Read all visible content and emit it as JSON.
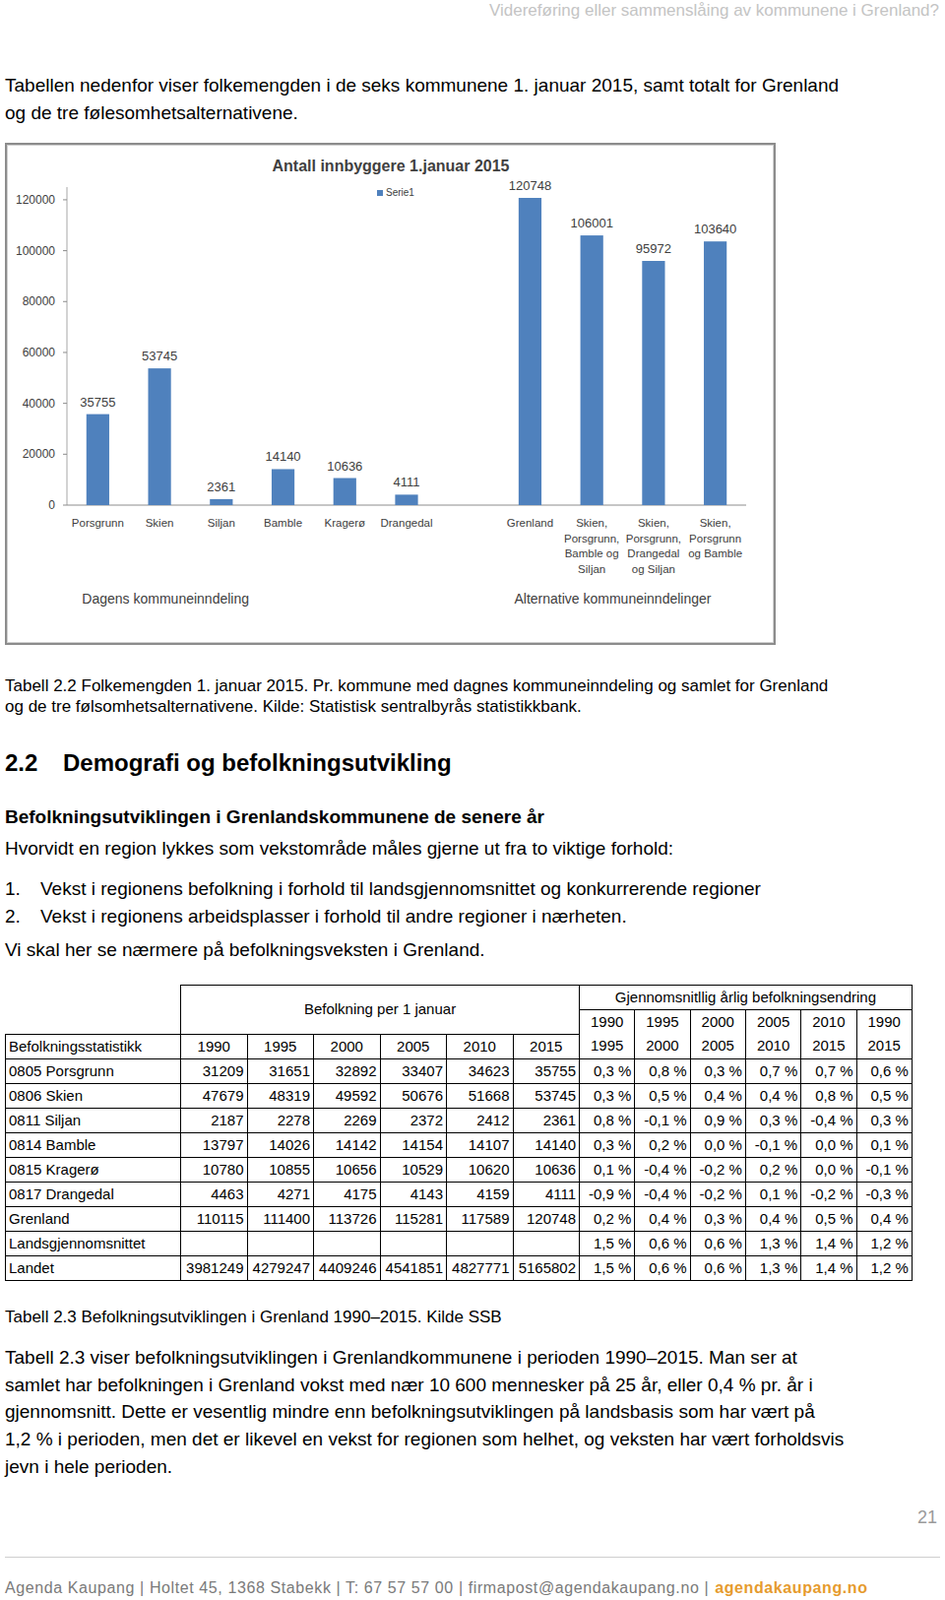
{
  "header": {
    "title": "Videreføring eller sammenslåing av kommunene i Grenland?"
  },
  "intro": [
    "Tabellen nedenfor viser folkemengden i de seks kommunene 1. januar 2015, samt totalt for Grenland",
    "og de tre følesomhetsalternativene."
  ],
  "chart_data": {
    "type": "bar",
    "title": "Antall innbyggere 1.januar 2015",
    "categories": [
      "Porsgrunn",
      "Skien",
      "Siljan",
      "Bamble",
      "Kragerø",
      "Drangedal",
      null,
      "Grenland",
      "Skien,\nPorsgrunn,\nBamble og\nSiljan",
      "Skien,\nPorsgrunn,\nDrangedal\nog Siljan",
      "Skien,\nPorsgrunn\nog Bamble"
    ],
    "series": [
      {
        "name": "Serie1",
        "color": "#4f81bd",
        "values": [
          35755,
          53745,
          2361,
          14140,
          10636,
          4111,
          null,
          120748,
          106001,
          95972,
          103640
        ]
      }
    ],
    "ylim": [
      0,
      125000
    ],
    "yticks": [
      0,
      20000,
      40000,
      60000,
      80000,
      100000,
      120000
    ],
    "grid": false,
    "data_labels": true,
    "legend": "top",
    "annotations": [
      "Dagens kommuneinndeling",
      "Alternative kommuneinndelinger"
    ]
  },
  "chart_caption": [
    "Tabell 2.2 Folkemengden 1. januar 2015. Pr. kommune med dagnes kommuneinndeling og samlet for Grenland",
    "og de tre følsomhetsalternativene. Kilde: Statistisk sentralbyrås statistikkbank."
  ],
  "section": {
    "number": "2.2",
    "title": "Demografi og befolkningsutvikling"
  },
  "subheading": "Befolkningsutviklingen i Grenlandskommunene de senere år",
  "lead": "Hvorvidt en region lykkes som vekstområde måles gjerne ut fra to viktige forhold:",
  "list": [
    {
      "marker": "1.",
      "text": "Vekst i regionens befolkning i forhold til landsgjennomsnittet og konkurrerende regioner"
    },
    {
      "marker": "2.",
      "text": "Vekst i regionens arbeidsplasser i forhold til andre regioner i nærheten."
    }
  ],
  "after_list": "Vi skal her se nærmere på befolkningsveksten i Grenland.",
  "table": {
    "population_header": "Befolkning per 1 januar",
    "change_header": "Gjennomsnitllig årlig befolkningsendring",
    "row_header": "Befolkningsstatistikk",
    "years": [
      "1990",
      "1995",
      "2000",
      "2005",
      "2010",
      "2015"
    ],
    "period_start": [
      "1990",
      "1995",
      "2000",
      "2005",
      "2010",
      "1990"
    ],
    "period_end": [
      "1995",
      "2000",
      "2005",
      "2010",
      "2015",
      "2015"
    ],
    "rows": [
      {
        "label": "0805 Porsgrunn",
        "population": [
          "31209",
          "31651",
          "32892",
          "33407",
          "34623",
          "35755"
        ],
        "change": [
          "0,3 %",
          "0,8 %",
          "0,3 %",
          "0,7 %",
          "0,7 %",
          "0,6 %"
        ]
      },
      {
        "label": "0806 Skien",
        "population": [
          "47679",
          "48319",
          "49592",
          "50676",
          "51668",
          "53745"
        ],
        "change": [
          "0,3 %",
          "0,5 %",
          "0,4 %",
          "0,4 %",
          "0,8 %",
          "0,5 %"
        ]
      },
      {
        "label": "0811 Siljan",
        "population": [
          "2187",
          "2278",
          "2269",
          "2372",
          "2412",
          "2361"
        ],
        "change": [
          "0,8 %",
          "-0,1 %",
          "0,9 %",
          "0,3 %",
          "-0,4 %",
          "0,3 %"
        ]
      },
      {
        "label": "0814 Bamble",
        "population": [
          "13797",
          "14026",
          "14142",
          "14154",
          "14107",
          "14140"
        ],
        "change": [
          "0,3 %",
          "0,2 %",
          "0,0 %",
          "-0,1 %",
          "0,0 %",
          "0,1 %"
        ]
      },
      {
        "label": "0815 Kragerø",
        "population": [
          "10780",
          "10855",
          "10656",
          "10529",
          "10620",
          "10636"
        ],
        "change": [
          "0,1 %",
          "-0,4 %",
          "-0,2 %",
          "0,2 %",
          "0,0 %",
          "-0,1 %"
        ]
      },
      {
        "label": "0817 Drangedal",
        "population": [
          "4463",
          "4271",
          "4175",
          "4143",
          "4159",
          "4111"
        ],
        "change": [
          "-0,9 %",
          "-0,4 %",
          "-0,2 %",
          "0,1 %",
          "-0,2 %",
          "-0,3 %"
        ]
      },
      {
        "label": "Grenland",
        "population": [
          "110115",
          "111400",
          "113726",
          "115281",
          "117589",
          "120748"
        ],
        "change": [
          "0,2 %",
          "0,4 %",
          "0,3 %",
          "0,4 %",
          "0,5 %",
          "0,4 %"
        ]
      },
      {
        "label": "Landsgjennomsnittet",
        "population": [
          null,
          null,
          null,
          null,
          null,
          null
        ],
        "change": [
          "1,5 %",
          "0,6 %",
          "0,6 %",
          "1,3 %",
          "1,4 %",
          "1,2 %"
        ]
      },
      {
        "label": "Landet",
        "population": [
          "3981249",
          "4279247",
          "4409246",
          "4541851",
          "4827771",
          "5165802"
        ],
        "change": [
          "1,5 %",
          "0,6 %",
          "0,6 %",
          "1,3 %",
          "1,4 %",
          "1,2 %"
        ]
      }
    ]
  },
  "table_caption": "Tabell 2.3 Befolkningsutviklingen i Grenland 1990–2015. Kilde SSB",
  "body": [
    "Tabell 2.3 viser befolkningsutviklingen i Grenlandkommunene i perioden 1990–2015. Man ser at",
    "samlet har befolkningen i Grenland vokst med nær 10 600 mennesker på 25 år, eller 0,4 % pr. år i",
    "gjennomsnitt. Dette er vesentlig mindre enn befolkningsutviklingen på landsbasis som har vært på",
    "1,2 % i perioden, men det er likevel en vekst for regionen som helhet, og veksten har vært forholdsvis",
    "jevn i hele perioden."
  ],
  "page_number": "21",
  "footer": {
    "text": "Agenda Kaupang | Holtet 45, 1368 Stabekk | T: 67 57 57 00 | firmapost@agendakaupang.no |",
    "site": "agendakaupang.no"
  }
}
